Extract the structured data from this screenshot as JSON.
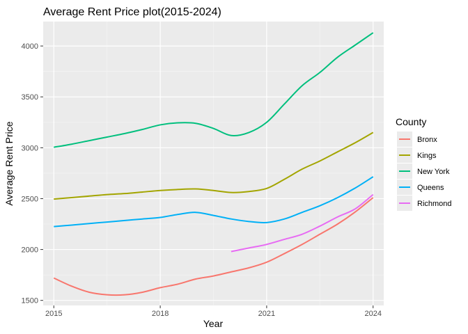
{
  "chart_data": {
    "type": "line",
    "title": "Average Rent Price plot(2015-2024)",
    "xlabel": "Year",
    "ylabel": "Average Rent Price",
    "xlim": [
      2014.7,
      2024.3
    ],
    "ylim": [
      1450,
      4240
    ],
    "x_ticks": [
      2015,
      2018,
      2021,
      2024
    ],
    "y_ticks": [
      1500,
      2000,
      2500,
      3000,
      3500,
      4000
    ],
    "grid": true,
    "legend": {
      "title": "County",
      "position": "right"
    },
    "series": [
      {
        "name": "Bronx",
        "color": "#F8766D",
        "x": [
          2015,
          2015.5,
          2016,
          2016.5,
          2017,
          2017.5,
          2018,
          2018.5,
          2019,
          2019.5,
          2020,
          2020.5,
          2021,
          2021.5,
          2022,
          2022.5,
          2023,
          2023.5,
          2024
        ],
        "y": [
          1720,
          1640,
          1580,
          1555,
          1555,
          1580,
          1625,
          1660,
          1710,
          1740,
          1780,
          1820,
          1875,
          1960,
          2050,
          2150,
          2250,
          2370,
          2510
        ]
      },
      {
        "name": "Kings",
        "color": "#A3A500",
        "x": [
          2015,
          2015.5,
          2016,
          2016.5,
          2017,
          2017.5,
          2018,
          2018.5,
          2019,
          2019.5,
          2020,
          2020.5,
          2021,
          2021.5,
          2022,
          2022.5,
          2023,
          2023.5,
          2024
        ],
        "y": [
          2495,
          2510,
          2525,
          2540,
          2550,
          2565,
          2580,
          2590,
          2595,
          2580,
          2560,
          2570,
          2600,
          2690,
          2790,
          2870,
          2960,
          3050,
          3150
        ]
      },
      {
        "name": "New York",
        "color": "#00BF7D",
        "x": [
          2015,
          2015.5,
          2016,
          2016.5,
          2017,
          2017.5,
          2018,
          2018.5,
          2019,
          2019.5,
          2020,
          2020.5,
          2021,
          2021.5,
          2022,
          2022.5,
          2023,
          2023.5,
          2024
        ],
        "y": [
          3005,
          3035,
          3070,
          3105,
          3140,
          3180,
          3225,
          3245,
          3240,
          3190,
          3120,
          3150,
          3250,
          3430,
          3610,
          3740,
          3890,
          4010,
          4130
        ]
      },
      {
        "name": "Queens",
        "color": "#00B0F6",
        "x": [
          2015,
          2015.5,
          2016,
          2016.5,
          2017,
          2017.5,
          2018,
          2018.5,
          2019,
          2019.5,
          2020,
          2020.5,
          2021,
          2021.5,
          2022,
          2022.5,
          2023,
          2023.5,
          2024
        ],
        "y": [
          2225,
          2240,
          2255,
          2270,
          2285,
          2300,
          2315,
          2345,
          2365,
          2335,
          2300,
          2275,
          2265,
          2300,
          2365,
          2430,
          2510,
          2605,
          2715
        ]
      },
      {
        "name": "Richmond",
        "color": "#E76BF3",
        "x": [
          2020,
          2020.5,
          2021,
          2021.5,
          2022,
          2022.5,
          2023,
          2023.5,
          2024
        ],
        "y": [
          1980,
          2015,
          2050,
          2100,
          2150,
          2230,
          2320,
          2400,
          2540
        ]
      }
    ]
  }
}
